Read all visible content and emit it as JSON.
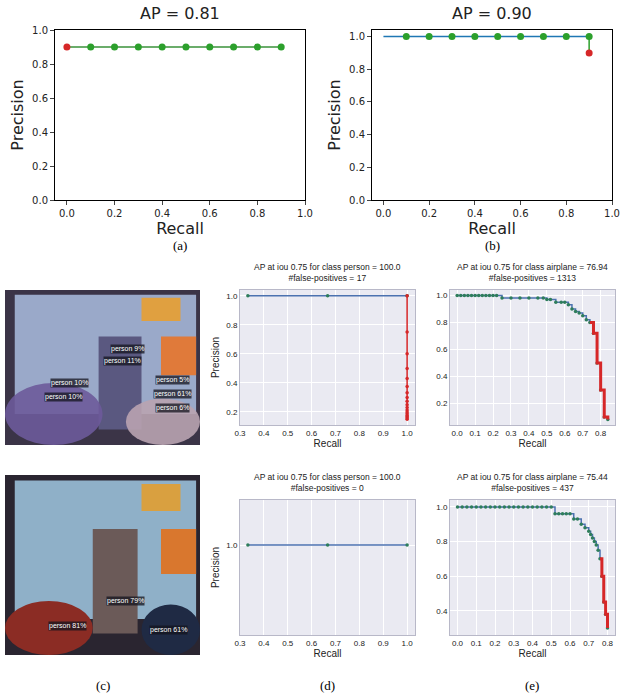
{
  "chart_data": [
    {
      "type": "line",
      "title": "AP = 0.81",
      "x_label": "Recall",
      "y_label": "Precision",
      "xlim": [
        -0.05,
        1
      ],
      "ylim": [
        0,
        1
      ],
      "xticks": [
        {
          "value": 0,
          "label": "0.0"
        },
        0.2,
        0.4,
        0.6,
        0.8,
        {
          "value": 1,
          "label": "1.0"
        }
      ],
      "yticks": [
        {
          "value": 0,
          "label": "0.0"
        },
        0.2,
        0.4,
        0.6,
        0.8,
        {
          "value": 1,
          "label": "1.0"
        }
      ],
      "grid": false,
      "series": [
        {
          "color": "#3a923a",
          "marker": "none",
          "line_style": "solid",
          "x": [
            0,
            0.1,
            0.2,
            0.3,
            0.4,
            0.5,
            0.6,
            0.7,
            0.8,
            0.9
          ],
          "values": [
            0.9,
            0.9,
            0.9,
            0.9,
            0.9,
            0.9,
            0.9,
            0.9,
            0.9,
            0.9
          ]
        },
        {
          "colors": [
            "#d62728",
            "#2ca02c",
            "#2ca02c",
            "#2ca02c",
            "#2ca02c",
            "#2ca02c",
            "#2ca02c",
            "#2ca02c",
            "#2ca02c",
            "#2ca02c"
          ],
          "marker": "circle",
          "line_style": "none",
          "x": [
            0,
            0.1,
            0.2,
            0.3,
            0.4,
            0.5,
            0.6,
            0.7,
            0.8,
            0.9
          ],
          "values": [
            0.9,
            0.9,
            0.9,
            0.9,
            0.9,
            0.9,
            0.9,
            0.9,
            0.9,
            0.9
          ]
        }
      ]
    },
    {
      "type": "line",
      "title": "AP = 0.90",
      "x_label": "Recall",
      "y_label": "Precision",
      "xlim": [
        -0.05,
        1
      ],
      "ylim": [
        0,
        1.04
      ],
      "xticks": [
        {
          "value": 0,
          "label": "0.0"
        },
        0.2,
        0.4,
        0.6,
        0.8,
        {
          "value": 1,
          "label": "1.0"
        }
      ],
      "yticks": [
        {
          "value": 0,
          "label": "0.0"
        },
        0.2,
        0.4,
        0.6,
        0.8,
        {
          "value": 1,
          "label": "1.0"
        }
      ],
      "grid": false,
      "series": [
        {
          "color": "#1f77b4",
          "marker": "none",
          "line_style": "solid",
          "x": [
            0,
            0.1,
            0.2,
            0.3,
            0.4,
            0.5,
            0.6,
            0.7,
            0.8,
            0.9
          ],
          "values": [
            1,
            1,
            1,
            1,
            1,
            1,
            1,
            1,
            1,
            1
          ]
        },
        {
          "color": "#2ca02c",
          "marker": "none",
          "line_style": "solid",
          "x": [
            0.9,
            0.9
          ],
          "values": [
            1,
            0.9
          ]
        },
        {
          "colors": [
            "#2ca02c",
            "#2ca02c",
            "#2ca02c",
            "#2ca02c",
            "#2ca02c",
            "#2ca02c",
            "#2ca02c",
            "#2ca02c",
            "#2ca02c",
            "#d62728"
          ],
          "marker": "circle",
          "line_style": "none",
          "x": [
            0.1,
            0.2,
            0.3,
            0.4,
            0.5,
            0.6,
            0.7,
            0.8,
            0.9,
            0.9
          ],
          "values": [
            1,
            1,
            1,
            1,
            1,
            1,
            1,
            1,
            1,
            0.9
          ]
        }
      ]
    },
    {
      "type": "line",
      "title": "AP at iou 0.75 for class person = 100.0\n#false-positives = 17",
      "x_label": "Recall",
      "y_label": "Precision",
      "xlim": [
        0.3,
        1.033
      ],
      "ylim": [
        0.11,
        1.04
      ],
      "xticks": [
        0.3,
        0.4,
        0.5,
        0.6,
        0.7,
        0.8,
        0.9,
        {
          "value": 1,
          "label": "1.0"
        }
      ],
      "yticks": [
        0.2,
        0.4,
        0.6,
        0.8,
        {
          "value": 1,
          "label": "1.0"
        }
      ],
      "grid": true,
      "series": [
        {
          "color": "#4c72b0",
          "marker": "circle",
          "line_style": "step",
          "x": [
            0.333,
            0.667,
            1
          ],
          "values": [
            1,
            1,
            1
          ]
        },
        {
          "color": "#d62728",
          "marker": "circle",
          "line_style": "solid",
          "x": [
            1,
            1,
            1,
            1,
            1,
            1,
            1,
            1,
            1,
            1,
            1,
            1,
            1,
            1,
            1,
            1,
            1,
            1
          ],
          "values": [
            1,
            0.75,
            0.6,
            0.5,
            0.43,
            0.375,
            0.333,
            0.3,
            0.273,
            0.25,
            0.231,
            0.214,
            0.2,
            0.188,
            0.176,
            0.167,
            0.158,
            0.15
          ]
        }
      ]
    },
    {
      "type": "line",
      "title": "AP at iou 0.75 for class airplane = 76.94\n#false-positives = 1313",
      "x_label": "Recall",
      "xlim": [
        -0.04,
        0.88
      ],
      "ylim": [
        0.04,
        1.04
      ],
      "xticks": [
        {
          "value": 0,
          "label": "0.0"
        },
        0.1,
        0.2,
        0.3,
        0.4,
        0.5,
        0.6,
        0.7,
        0.8
      ],
      "yticks": [
        0.2,
        0.4,
        0.6,
        0.8,
        {
          "value": 1,
          "label": "1.0"
        }
      ],
      "grid": true,
      "series": [
        {
          "color": "#4c72b0",
          "marker": "circle",
          "line_style": "step",
          "x": [
            0,
            0.02,
            0.04,
            0.06,
            0.08,
            0.1,
            0.12,
            0.14,
            0.16,
            0.18,
            0.2,
            0.22,
            0.25,
            0.3,
            0.35,
            0.4,
            0.45,
            0.48,
            0.5,
            0.52,
            0.55,
            0.58,
            0.6,
            0.62,
            0.64,
            0.66,
            0.68,
            0.7,
            0.72,
            0.74,
            0.76,
            0.78,
            0.8,
            0.82,
            0.84
          ],
          "values": [
            1,
            1,
            1,
            1,
            1,
            1,
            1,
            1,
            1,
            1,
            1,
            1,
            0.98,
            0.98,
            0.98,
            0.98,
            0.98,
            0.98,
            0.97,
            0.97,
            0.95,
            0.95,
            0.95,
            0.93,
            0.9,
            0.88,
            0.87,
            0.85,
            0.82,
            0.8,
            0.72,
            0.5,
            0.3,
            0.1,
            0.08
          ]
        },
        {
          "color": "#d62728",
          "marker": "none",
          "line_style": "step",
          "x": [
            0.74,
            0.76,
            0.78,
            0.8,
            0.82,
            0.84
          ],
          "values": [
            0.8,
            0.72,
            0.5,
            0.3,
            0.1,
            0.08
          ]
        }
      ]
    },
    {
      "type": "line",
      "title": "AP at iou 0.75 for class person = 100.0\n#false-positives = 0",
      "x_label": "Recall",
      "y_label": "Precision",
      "xlim": [
        0.3,
        1.033
      ],
      "ylim": [
        0.96,
        1.02
      ],
      "xticks": [
        0.3,
        0.4,
        0.5,
        0.6,
        0.7,
        0.8,
        0.9,
        {
          "value": 1,
          "label": "1.0"
        }
      ],
      "yticks": [
        {
          "value": 1,
          "label": "1.0"
        }
      ],
      "grid": true,
      "series": [
        {
          "color": "#4c72b0",
          "marker": "circle",
          "line_style": "step",
          "x": [
            0.333,
            0.667,
            1
          ],
          "values": [
            1,
            1,
            1
          ]
        }
      ]
    },
    {
      "type": "line",
      "title": "AP at iou 0.75 for class airplane = 75.44\n#false-positives = 437",
      "x_label": "Recall",
      "xlim": [
        -0.04,
        0.84
      ],
      "ylim": [
        0.26,
        1.04
      ],
      "xticks": [
        {
          "value": 0,
          "label": "0.0"
        },
        0.1,
        0.2,
        0.3,
        0.4,
        0.5,
        0.6,
        0.7,
        0.8
      ],
      "yticks": [
        0.4,
        0.6,
        0.8,
        {
          "value": 1,
          "label": "1.0"
        }
      ],
      "grid": true,
      "series": [
        {
          "color": "#4c72b0",
          "marker": "circle",
          "line_style": "step",
          "x": [
            0,
            0.025,
            0.05,
            0.075,
            0.1,
            0.125,
            0.15,
            0.175,
            0.2,
            0.225,
            0.25,
            0.275,
            0.3,
            0.325,
            0.35,
            0.375,
            0.4,
            0.425,
            0.45,
            0.475,
            0.5,
            0.52,
            0.54,
            0.56,
            0.58,
            0.6,
            0.62,
            0.64,
            0.66,
            0.68,
            0.7,
            0.71,
            0.72,
            0.73,
            0.74,
            0.75,
            0.76,
            0.77,
            0.78,
            0.79,
            0.8
          ],
          "values": [
            1,
            1,
            1,
            1,
            1,
            1,
            1,
            1,
            1,
            1,
            1,
            1,
            1,
            1,
            1,
            1,
            1,
            1,
            1,
            1,
            1,
            0.96,
            0.96,
            0.96,
            0.96,
            0.96,
            0.93,
            0.93,
            0.9,
            0.88,
            0.86,
            0.84,
            0.82,
            0.8,
            0.78,
            0.75,
            0.7,
            0.6,
            0.45,
            0.38,
            0.3
          ]
        },
        {
          "color": "#d62728",
          "marker": "none",
          "line_style": "step",
          "x": [
            0.76,
            0.77,
            0.78,
            0.79,
            0.8
          ],
          "values": [
            0.7,
            0.6,
            0.45,
            0.38,
            0.3
          ]
        }
      ]
    }
  ],
  "photos": [
    {
      "labels": [
        "person 9%",
        "person 11%",
        "person 10%",
        "person 10%",
        "person 5%",
        "person 61%",
        "person 6%"
      ]
    },
    {
      "labels": [
        "person 79%",
        "person 81%",
        "person 61%"
      ]
    }
  ],
  "panel_labels": [
    "(a)",
    "(b)",
    "(c)",
    "(d)",
    "(e)"
  ]
}
